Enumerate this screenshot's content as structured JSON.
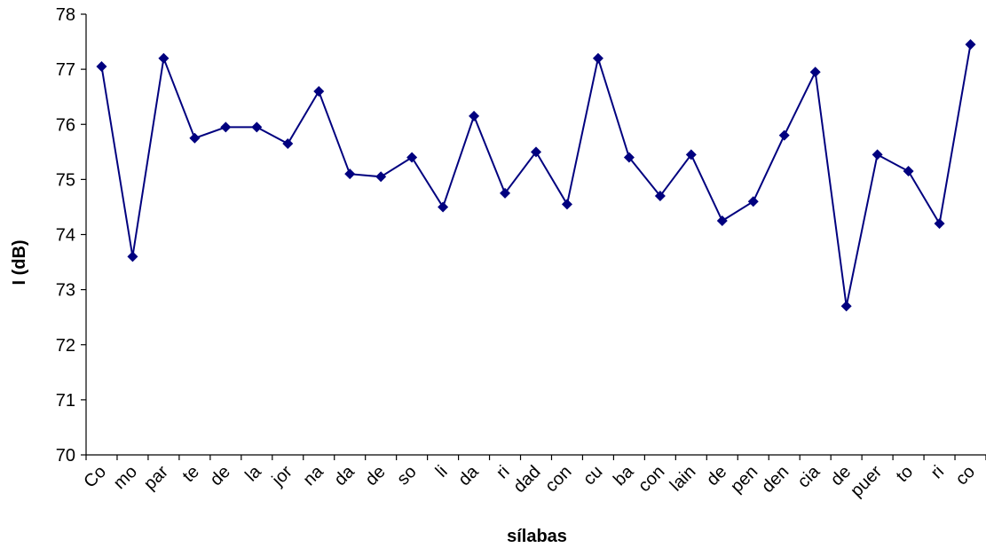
{
  "chart_data": {
    "type": "line",
    "title": "",
    "xlabel": "sílabas",
    "ylabel": "I (dB)",
    "ylim": [
      70,
      78
    ],
    "yticks": [
      70,
      71,
      72,
      73,
      74,
      75,
      76,
      77,
      78
    ],
    "grid": false,
    "legend": "none",
    "categories": [
      "Co",
      "mo",
      "par",
      "te",
      "de",
      "la",
      "jor",
      "na",
      "da",
      "de",
      "so",
      "li",
      "da",
      "ri",
      "dad",
      "con",
      "cu",
      "ba",
      "con",
      "lain",
      "de",
      "pen",
      "den",
      "cia",
      "de",
      "puer",
      "to",
      "ri",
      "co"
    ],
    "series": [
      {
        "values": [
          77.05,
          73.6,
          77.2,
          75.75,
          75.95,
          75.95,
          75.65,
          76.6,
          75.1,
          75.05,
          75.4,
          74.5,
          76.15,
          74.75,
          75.5,
          74.55,
          77.2,
          75.4,
          74.7,
          75.45,
          74.25,
          74.6,
          75.8,
          76.95,
          72.7,
          75.45,
          75.15,
          74.2,
          77.45
        ],
        "color": "#00007f",
        "marker": "diamond"
      }
    ]
  }
}
